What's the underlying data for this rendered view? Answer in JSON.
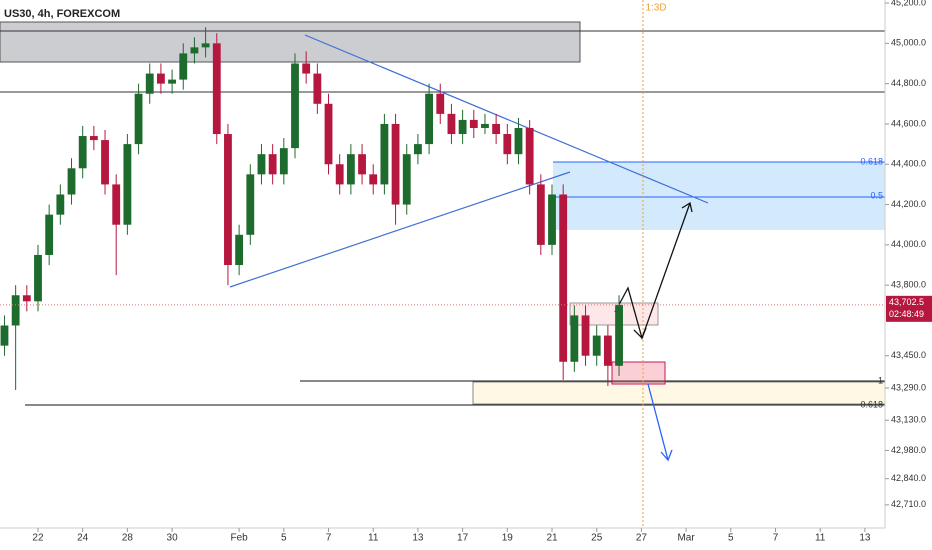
{
  "chart_data": {
    "type": "candlestick",
    "title": "US30, 4h, FOREXCOM",
    "marker_text": "1:3D",
    "fib_labels": [
      "0.618",
      "0.5",
      "1",
      "0.618"
    ],
    "last_price": {
      "value": 43702.5,
      "label": "43,702.5"
    },
    "countdown": "02:48:49",
    "up_color": "#1e6b2e",
    "down_color": "#b5173f",
    "x": [
      -1.5,
      -1,
      -0.5,
      0,
      0.5,
      1,
      1.5,
      2,
      2.5,
      3,
      3.5,
      4,
      4.5,
      5,
      5.5,
      6,
      6.5,
      7,
      7.5,
      8,
      8.5,
      9,
      9.5,
      10,
      10.5,
      11,
      11.5,
      12,
      12.5,
      13,
      13.5,
      14,
      14.5,
      15,
      15.5,
      16,
      16.5,
      17,
      17.5,
      18,
      18.5,
      19,
      19.5,
      20,
      20.5,
      21,
      21.5,
      22,
      22.5,
      23,
      23.5,
      24,
      24.5,
      25,
      25.5,
      26
    ],
    "open": [
      43500,
      43600,
      43750,
      43720,
      43950,
      44150,
      44250,
      44380,
      44540,
      44520,
      44300,
      44100,
      44500,
      44750,
      44850,
      44800,
      44820,
      44950,
      44980,
      45000,
      44550,
      43900,
      44050,
      44350,
      44450,
      44350,
      44480,
      44900,
      44850,
      44700,
      44400,
      44300,
      44450,
      44350,
      44300,
      44600,
      44200,
      44450,
      44500,
      44750,
      44650,
      44550,
      44620,
      44580,
      44600,
      44550,
      44450,
      44580,
      44300,
      44000,
      44250,
      43420,
      43650,
      43450,
      43550,
      43400
    ],
    "high": [
      43650,
      43800,
      43800,
      44000,
      44200,
      44300,
      44430,
      44590,
      44590,
      44570,
      44350,
      44550,
      44800,
      44900,
      44900,
      44870,
      45000,
      45030,
      45080,
      45050,
      44600,
      44100,
      44400,
      44500,
      44500,
      44530,
      44950,
      44960,
      44900,
      44750,
      44450,
      44500,
      44500,
      44400,
      44650,
      44650,
      44500,
      44550,
      44800,
      44800,
      44700,
      44670,
      44670,
      44650,
      44650,
      44600,
      44630,
      44620,
      44350,
      44300,
      44300,
      43700,
      43700,
      43600,
      43600,
      43750
    ],
    "low": [
      43450,
      43280,
      43670,
      43670,
      43900,
      44100,
      44200,
      44330,
      44470,
      44250,
      43850,
      44050,
      44450,
      44700,
      44750,
      44750,
      44770,
      44900,
      44930,
      44500,
      43800,
      43850,
      44000,
      44300,
      44300,
      44300,
      44430,
      44800,
      44650,
      44350,
      44250,
      44250,
      44300,
      44250,
      44250,
      44100,
      44150,
      44400,
      44450,
      44600,
      44500,
      44500,
      44530,
      44550,
      44500,
      44400,
      44400,
      44250,
      43950,
      43950,
      43330,
      43370,
      43400,
      43400,
      43300,
      43350
    ],
    "close": [
      43600,
      43750,
      43720,
      43950,
      44150,
      44250,
      44380,
      44540,
      44520,
      44300,
      44100,
      44500,
      44750,
      44850,
      44800,
      44820,
      44950,
      44980,
      45000,
      44550,
      43900,
      44050,
      44350,
      44450,
      44350,
      44480,
      44900,
      44850,
      44700,
      44400,
      44300,
      44450,
      44350,
      44300,
      44600,
      44200,
      44450,
      44500,
      44750,
      44650,
      44550,
      44620,
      44580,
      44600,
      44550,
      44450,
      44580,
      44300,
      44000,
      44250,
      43420,
      43650,
      43450,
      43550,
      43400,
      43702.5
    ],
    "xlim": [
      -1.7,
      37.9
    ],
    "xticks": [
      {
        "value": 0,
        "label": "22"
      },
      {
        "value": 2,
        "label": "24"
      },
      {
        "value": 4,
        "label": "28"
      },
      {
        "value": 6,
        "label": "30"
      },
      {
        "value": 9,
        "label": "Feb"
      },
      {
        "value": 11,
        "label": "5"
      },
      {
        "value": 13,
        "label": "7"
      },
      {
        "value": 15,
        "label": "11"
      },
      {
        "value": 17,
        "label": "13"
      },
      {
        "value": 19,
        "label": "17"
      },
      {
        "value": 21,
        "label": "19"
      },
      {
        "value": 23,
        "label": "21"
      },
      {
        "value": 25,
        "label": "25"
      },
      {
        "value": 27,
        "label": "27"
      },
      {
        "value": 29,
        "label": "Mar"
      },
      {
        "value": 31,
        "label": "5"
      },
      {
        "value": 33,
        "label": "7"
      },
      {
        "value": 35,
        "label": "11"
      },
      {
        "value": 37,
        "label": "13"
      }
    ],
    "ylim": [
      42620,
      45215
    ],
    "yticks": [
      {
        "value": 45200,
        "label": "45,200.0"
      },
      {
        "value": 45000,
        "label": "45,000.0"
      },
      {
        "value": 44800,
        "label": "44,800.0"
      },
      {
        "value": 44600,
        "label": "44,600.0"
      },
      {
        "value": 44400,
        "label": "44,400.0"
      },
      {
        "value": 44200,
        "label": "44,200.0"
      },
      {
        "value": 44000,
        "label": "44,000.0"
      },
      {
        "value": 43800,
        "label": "43,800.0"
      },
      {
        "value": 43450,
        "label": "43,450.0"
      },
      {
        "value": 43290,
        "label": "43,290.0"
      },
      {
        "value": 43130,
        "label": "43,130.0"
      },
      {
        "value": 42980,
        "label": "42,980.0"
      },
      {
        "value": 42840,
        "label": "42,840.0"
      },
      {
        "value": 42710,
        "label": "42,710.0"
      }
    ]
  }
}
